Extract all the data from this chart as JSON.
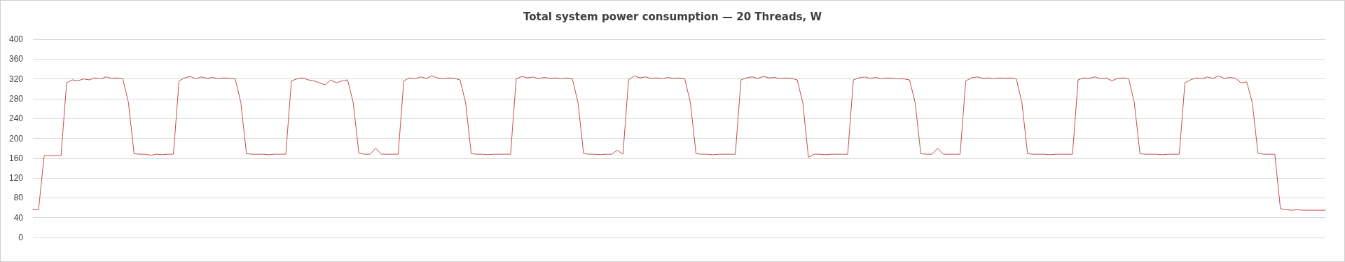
{
  "chart_data": {
    "type": "line",
    "title": "Total system power consumption — 20 Threads, W",
    "categories": [
      null,
      null,
      null,
      null,
      null,
      null,
      null,
      null,
      null,
      null,
      null,
      null,
      null,
      null,
      null,
      null,
      null,
      null,
      null,
      null,
      null,
      null,
      null,
      null,
      null,
      null,
      null,
      null,
      null,
      null,
      null,
      null,
      null,
      null,
      null,
      null,
      null,
      null,
      null,
      null,
      null,
      null,
      null,
      null,
      null,
      null,
      null,
      null,
      null,
      null,
      null,
      null,
      null,
      null,
      null,
      null,
      null,
      null,
      null,
      null,
      null,
      null,
      null,
      null,
      null,
      null,
      null,
      null,
      null,
      null,
      null,
      null,
      null,
      null,
      null,
      null,
      null,
      null,
      null,
      null,
      null,
      null,
      null,
      null,
      null,
      null,
      null,
      null,
      null,
      null,
      null,
      null,
      null,
      null,
      null,
      null,
      null,
      null,
      null,
      null,
      null,
      null,
      null,
      null,
      null,
      null,
      null,
      null,
      null,
      null,
      null,
      null,
      null,
      null,
      null,
      null,
      null,
      null,
      null,
      null,
      null,
      null,
      null,
      null,
      null,
      null,
      null,
      null,
      null,
      null,
      null,
      null,
      null,
      null,
      null,
      null,
      null,
      null,
      null,
      null,
      null,
      null,
      null,
      null,
      null,
      null,
      null,
      null,
      null,
      null,
      null,
      null,
      null,
      null,
      null,
      null,
      null,
      null,
      null,
      null,
      null,
      null,
      null,
      null,
      null,
      null,
      null,
      null,
      null,
      null,
      null,
      null,
      null,
      null,
      null,
      null,
      null,
      null,
      null,
      null,
      null,
      null,
      null,
      null,
      null,
      null,
      null,
      null,
      null,
      null,
      null,
      null,
      null,
      null,
      null,
      null,
      null,
      null,
      null,
      null,
      null,
      null,
      null,
      null,
      null,
      null,
      null,
      null,
      null,
      null,
      null,
      null,
      null,
      null,
      null,
      null,
      null,
      null,
      null,
      null,
      null,
      null,
      null,
      null,
      null,
      null,
      null,
      null,
      null,
      null,
      null
    ],
    "series": [
      {
        "color": "#c0504d",
        "values": [
          56,
          56,
          165,
          165,
          165,
          165,
          312,
          318,
          316,
          320,
          318,
          322,
          320,
          324,
          321,
          322,
          320,
          272,
          169,
          168,
          168,
          166,
          168,
          167,
          168,
          168,
          316,
          322,
          325,
          320,
          324,
          321,
          323,
          320,
          322,
          321,
          320,
          272,
          169,
          168,
          168,
          168,
          167,
          168,
          168,
          168,
          316,
          320,
          322,
          318,
          316,
          312,
          308,
          318,
          312,
          316,
          318,
          272,
          170,
          168,
          168,
          180,
          168,
          168,
          168,
          168,
          316,
          322,
          320,
          324,
          321,
          326,
          322,
          320,
          322,
          321,
          318,
          272,
          169,
          168,
          168,
          167,
          168,
          168,
          168,
          168,
          320,
          325,
          322,
          324,
          320,
          323,
          321,
          322,
          320,
          322,
          320,
          272,
          169,
          168,
          168,
          167,
          168,
          168,
          176,
          168,
          318,
          326,
          322,
          324,
          321,
          322,
          320,
          323,
          321,
          322,
          320,
          272,
          169,
          168,
          168,
          167,
          168,
          168,
          168,
          168,
          318,
          322,
          324,
          321,
          325,
          322,
          323,
          320,
          322,
          321,
          318,
          272,
          162,
          168,
          168,
          167,
          168,
          168,
          168,
          168,
          318,
          322,
          324,
          321,
          323,
          320,
          322,
          321,
          320,
          320,
          318,
          272,
          169,
          168,
          168,
          180,
          168,
          168,
          168,
          168,
          316,
          322,
          324,
          321,
          322,
          320,
          322,
          321,
          322,
          320,
          272,
          169,
          168,
          168,
          168,
          167,
          168,
          168,
          168,
          168,
          318,
          322,
          321,
          324,
          320,
          322,
          316,
          321,
          322,
          320,
          272,
          169,
          168,
          168,
          168,
          167,
          168,
          168,
          168,
          312,
          318,
          322,
          320,
          324,
          321,
          326,
          321,
          323,
          321,
          312,
          314,
          272,
          170,
          168,
          168,
          168,
          58,
          56,
          55,
          56,
          55,
          55,
          55,
          55,
          55
        ]
      }
    ],
    "ylim": [
      0,
      400
    ],
    "yticks": [
      0,
      40,
      80,
      120,
      160,
      200,
      240,
      280,
      320,
      360,
      400
    ],
    "grid": "y",
    "tick_labels": "y",
    "line_style": "solid"
  }
}
